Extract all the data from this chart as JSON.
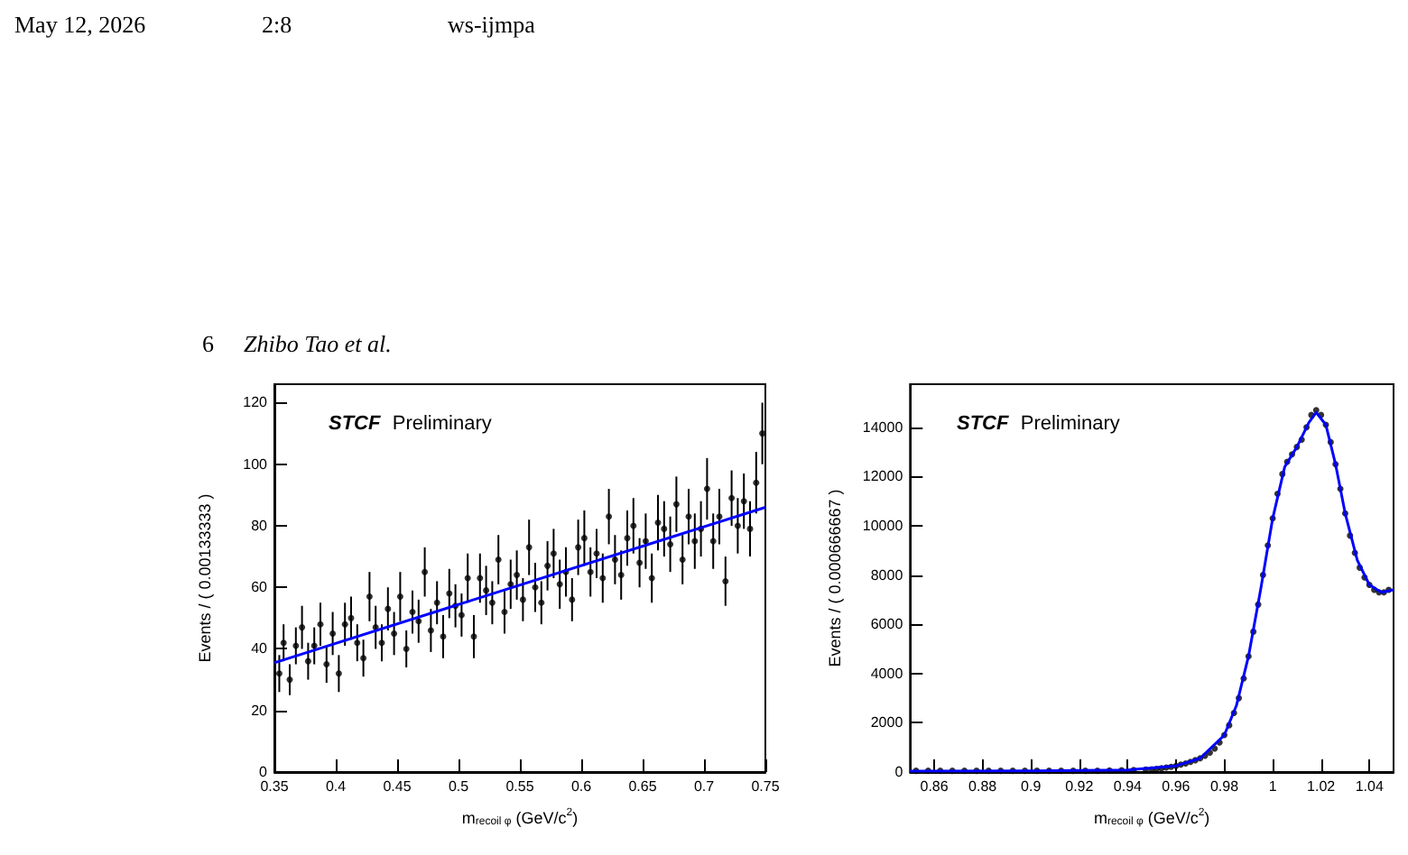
{
  "chart_data": [
    {
      "type": "scatter",
      "xlabel": "m$_{recoil φ}$ (GeV/c$^{2}$)",
      "ylabel": "Events / ( 0.00133333 )",
      "annotations": [
        "STCF",
        "Preliminary",
        "May 12, 2026",
        "2:8",
        "ws-ijmpa",
        "6",
        "Zhibo Tao et al."
      ],
      "xlim": [
        0.35,
        0.75
      ],
      "xticks": [
        0.35,
        0.4,
        0.45,
        0.5,
        0.55,
        0.6,
        0.65,
        0.7,
        0.75
      ],
      "ylim": [
        0,
        126
      ],
      "yticks": [
        0,
        20,
        40,
        60,
        80,
        100,
        120
      ],
      "grid": false,
      "series": [
        {
          "marker": "circle",
          "color": "#000000",
          "x": [
            0.354,
            0.3575,
            0.3625,
            0.3675,
            0.3725,
            0.3775,
            0.3825,
            0.3875,
            0.3925,
            0.3975,
            0.4025,
            0.4075,
            0.4125,
            0.4175,
            0.4225,
            0.4275,
            0.4325,
            0.4375,
            0.4425,
            0.4475,
            0.4525,
            0.4575,
            0.4625,
            0.4675,
            0.4725,
            0.4775,
            0.4825,
            0.4875,
            0.4925,
            0.4975,
            0.5025,
            0.5075,
            0.5125,
            0.5175,
            0.5225,
            0.5275,
            0.5325,
            0.5375,
            0.5425,
            0.5475,
            0.5525,
            0.5575,
            0.5625,
            0.5675,
            0.5725,
            0.5775,
            0.5825,
            0.5875,
            0.5925,
            0.5975,
            0.6025,
            0.6075,
            0.6125,
            0.6175,
            0.6225,
            0.6275,
            0.6325,
            0.6375,
            0.6425,
            0.6475,
            0.6525,
            0.6575,
            0.6625,
            0.6675,
            0.6725,
            0.6775,
            0.6825,
            0.6875,
            0.6925,
            0.6975,
            0.7025,
            0.7075,
            0.7125,
            0.7175,
            0.7225,
            0.7275,
            0.7325,
            0.7375,
            0.7425,
            0.7475
          ],
          "values": [
            32,
            42,
            30,
            41,
            47,
            36,
            41,
            48,
            35,
            45,
            32,
            48,
            50,
            42,
            37,
            57,
            47,
            42,
            53,
            45,
            57,
            40,
            52,
            49,
            65,
            46,
            55,
            44,
            58,
            54,
            51,
            63,
            44,
            63,
            59,
            55,
            69,
            52,
            61,
            64,
            56,
            73,
            60,
            55,
            67,
            71,
            61,
            65,
            56,
            73,
            76,
            65,
            71,
            63,
            83,
            69,
            64,
            76,
            80,
            68,
            75,
            63,
            81,
            79,
            74,
            87,
            69,
            83,
            75,
            79,
            92,
            75,
            83,
            62,
            89,
            80,
            88,
            79,
            94,
            110
          ],
          "errors": [
            6,
            6,
            5,
            6,
            7,
            6,
            6,
            7,
            6,
            7,
            6,
            7,
            7,
            6,
            6,
            8,
            7,
            6,
            7,
            7,
            8,
            6,
            7,
            7,
            8,
            7,
            7,
            7,
            8,
            7,
            7,
            8,
            7,
            8,
            8,
            7,
            8,
            7,
            8,
            8,
            7,
            9,
            8,
            7,
            8,
            8,
            8,
            8,
            7,
            9,
            9,
            8,
            8,
            8,
            9,
            8,
            8,
            9,
            9,
            8,
            9,
            8,
            9,
            9,
            9,
            9,
            8,
            9,
            9,
            9,
            10,
            9,
            9,
            8,
            9,
            9,
            9,
            9,
            10,
            10
          ]
        },
        {
          "type": "line",
          "color": "#0000ff",
          "x": [
            0.35,
            0.75
          ],
          "values": [
            35.5,
            86
          ]
        }
      ]
    },
    {
      "type": "scatter",
      "xlabel": "m$_{recoil φ}$ (GeV/c$^{2}$)",
      "ylabel": "Events / ( 0.000666667 )",
      "annotations": [
        "STCF",
        "Preliminary"
      ],
      "xlim": [
        0.85,
        1.05
      ],
      "xticks": [
        0.86,
        0.88,
        0.9,
        0.92,
        0.94,
        0.96,
        0.98,
        1,
        1.02,
        1.04
      ],
      "ylim": [
        0,
        15750
      ],
      "yticks": [
        0,
        2000,
        4000,
        6000,
        8000,
        10000,
        12000,
        14000
      ],
      "grid": false,
      "series": [
        {
          "marker": "circle",
          "color": "#000000",
          "x": [
            0.8525,
            0.8575,
            0.8625,
            0.8675,
            0.8725,
            0.8775,
            0.8825,
            0.8875,
            0.8925,
            0.8975,
            0.9025,
            0.9075,
            0.9125,
            0.9175,
            0.9225,
            0.9275,
            0.9325,
            0.9375,
            0.9425,
            0.9475,
            0.95,
            0.952,
            0.954,
            0.956,
            0.958,
            0.96,
            0.962,
            0.964,
            0.966,
            0.968,
            0.97,
            0.972,
            0.974,
            0.976,
            0.978,
            0.98,
            0.982,
            0.984,
            0.986,
            0.988,
            0.99,
            0.992,
            0.994,
            0.996,
            0.998,
            1,
            1.002,
            1.004,
            1.006,
            1.008,
            1.01,
            1.012,
            1.014,
            1.016,
            1.018,
            1.02,
            1.022,
            1.024,
            1.026,
            1.028,
            1.03,
            1.032,
            1.034,
            1.036,
            1.038,
            1.04,
            1.042,
            1.044,
            1.046,
            1.048
          ],
          "values": [
            50,
            50,
            50,
            50,
            50,
            50,
            50,
            50,
            50,
            50,
            50,
            50,
            50,
            50,
            50,
            50,
            60,
            70,
            80,
            100,
            110,
            130,
            150,
            180,
            210,
            250,
            300,
            350,
            410,
            480,
            560,
            660,
            790,
            950,
            1200,
            1500,
            1900,
            2400,
            3000,
            3800,
            4700,
            5700,
            6800,
            8000,
            9200,
            10300,
            11300,
            12100,
            12600,
            12900,
            13200,
            13500,
            14000,
            14500,
            14700,
            14500,
            14100,
            13400,
            12500,
            11500,
            10500,
            9600,
            8900,
            8300,
            7900,
            7600,
            7400,
            7300,
            7300,
            7400
          ]
        },
        {
          "type": "line",
          "color": "#0000ff",
          "x": [
            0.85,
            0.9,
            0.94,
            0.96,
            0.97,
            0.98,
            0.985,
            0.99,
            0.995,
            1,
            1.005,
            1.01,
            1.015,
            1.018,
            1.022,
            1.026,
            1.03,
            1.035,
            1.04,
            1.045,
            1.05
          ],
          "values": [
            40,
            50,
            80,
            250,
            560,
            1500,
            2700,
            4700,
            7400,
            10300,
            12400,
            13200,
            14200,
            14600,
            14100,
            12500,
            10500,
            8600,
            7600,
            7300,
            7400
          ]
        }
      ]
    }
  ]
}
